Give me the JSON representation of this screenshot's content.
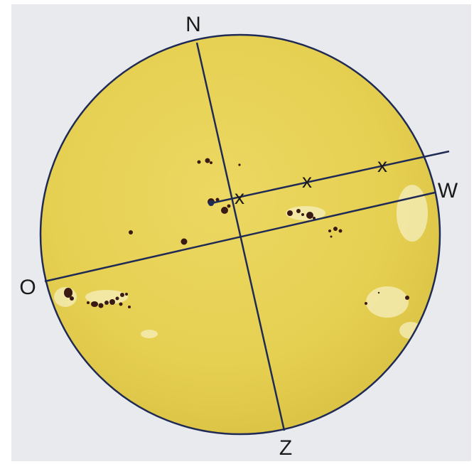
{
  "colors": {
    "background": "#e9eaee",
    "sun_fill": "#e9d45a",
    "sun_edge": "#1f2a55",
    "axis_line": "#1f2a55",
    "sunspot": "#3a1a14",
    "facula": "#f4ecb0"
  },
  "labels": {
    "north": "N",
    "south": "Z",
    "east": "O",
    "west": "W"
  },
  "track_marks": [
    "x",
    "x",
    "x"
  ]
}
